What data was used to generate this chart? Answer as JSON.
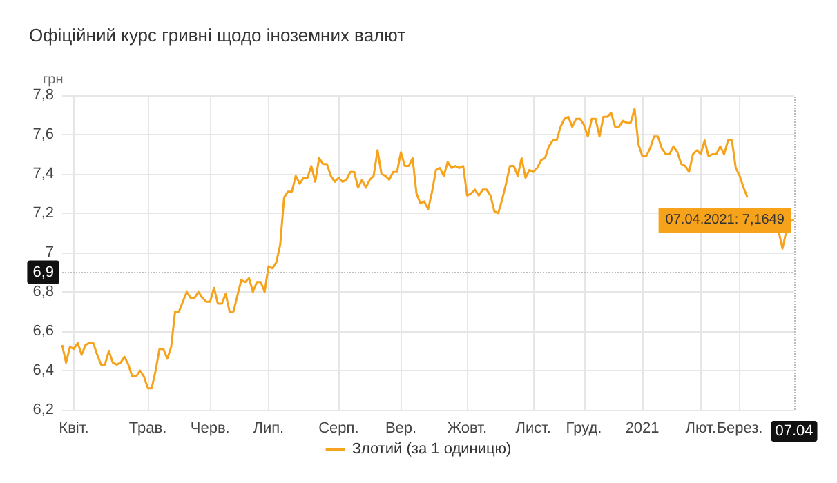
{
  "chart_data": {
    "type": "line",
    "title": "Офіційний курс гривні щодо іноземних валют",
    "ylabel": "грн",
    "categories": [
      null,
      null,
      null,
      "Квіт.",
      null,
      null,
      null,
      null,
      null,
      null,
      null,
      null,
      null,
      null,
      null,
      null,
      null,
      null,
      null,
      null,
      null,
      null,
      "Трав.",
      null,
      null,
      null,
      null,
      null,
      null,
      null,
      null,
      null,
      null,
      null,
      null,
      null,
      null,
      null,
      "Черв.",
      null,
      null,
      null,
      null,
      null,
      null,
      null,
      null,
      null,
      null,
      null,
      null,
      null,
      null,
      "Лип.",
      null,
      null,
      null,
      null,
      null,
      null,
      null,
      null,
      null,
      null,
      null,
      null,
      null,
      null,
      null,
      null,
      null,
      "Серп.",
      null,
      null,
      null,
      null,
      null,
      null,
      null,
      null,
      null,
      null,
      null,
      null,
      null,
      null,
      null,
      "Вер.",
      null,
      null,
      null,
      null,
      null,
      null,
      null,
      null,
      null,
      null,
      null,
      null,
      null,
      null,
      null,
      null,
      "Жовт.",
      null,
      null,
      null,
      null,
      null,
      null,
      null,
      null,
      null,
      null,
      null,
      null,
      null,
      null,
      null,
      null,
      "Лист.",
      null,
      null,
      null,
      null,
      null,
      null,
      null,
      null,
      null,
      null,
      null,
      null,
      "Груд.",
      null,
      null,
      null,
      null,
      null,
      null,
      null,
      null,
      null,
      null,
      null,
      null,
      null,
      null,
      "2021",
      null,
      null,
      null,
      null,
      null,
      null,
      null,
      null,
      null,
      null,
      null,
      null,
      null,
      null,
      "Лют.",
      null,
      null,
      null,
      null,
      null,
      null,
      null,
      null,
      null,
      "Берез.",
      null,
      null,
      null,
      null,
      null,
      null,
      null,
      null,
      null,
      null,
      null,
      null,
      null,
      "07.04"
    ],
    "series": [
      {
        "name": "Злотий (за 1 одиницю)",
        "color": "#f7a21b",
        "values": [
          6.53,
          6.44,
          6.52,
          6.51,
          6.54,
          6.48,
          6.53,
          6.54,
          6.54,
          6.48,
          6.43,
          6.43,
          6.5,
          6.44,
          6.43,
          6.44,
          6.47,
          6.43,
          6.37,
          6.37,
          6.4,
          6.37,
          6.31,
          6.31,
          6.4,
          6.51,
          6.51,
          6.46,
          6.52,
          6.7,
          6.7,
          6.75,
          6.8,
          6.77,
          6.77,
          6.8,
          6.77,
          6.75,
          6.75,
          6.82,
          6.74,
          6.74,
          6.79,
          6.7,
          6.7,
          6.78,
          6.86,
          6.85,
          6.87,
          6.8,
          6.85,
          6.85,
          6.8,
          6.93,
          6.92,
          6.95,
          7.04,
          7.28,
          7.31,
          7.31,
          7.39,
          7.35,
          7.38,
          7.38,
          7.44,
          7.36,
          7.48,
          7.45,
          7.45,
          7.39,
          7.36,
          7.38,
          7.36,
          7.37,
          7.41,
          7.41,
          7.33,
          7.37,
          7.33,
          7.37,
          7.39,
          7.52,
          7.4,
          7.39,
          7.37,
          7.41,
          7.41,
          7.51,
          7.44,
          7.44,
          7.48,
          7.3,
          7.25,
          7.26,
          7.22,
          7.31,
          7.42,
          7.43,
          7.39,
          7.46,
          7.43,
          7.44,
          7.43,
          7.44,
          7.29,
          7.3,
          7.32,
          7.29,
          7.32,
          7.32,
          7.29,
          7.21,
          7.2,
          7.27,
          7.35,
          7.44,
          7.44,
          7.39,
          7.48,
          7.38,
          7.42,
          7.41,
          7.43,
          7.47,
          7.48,
          7.54,
          7.57,
          7.57,
          7.64,
          7.68,
          7.69,
          7.64,
          7.68,
          7.68,
          7.65,
          7.59,
          7.68,
          7.68,
          7.59,
          7.69,
          7.69,
          7.71,
          7.64,
          7.64,
          7.67,
          7.66,
          7.66,
          7.73,
          7.55,
          7.49,
          7.49,
          7.53,
          7.59,
          7.59,
          7.53,
          7.5,
          7.5,
          7.54,
          7.51,
          7.45,
          7.44,
          7.41,
          7.5,
          7.52,
          7.5,
          7.57,
          7.49,
          7.5,
          7.5,
          7.54,
          7.5,
          7.57,
          7.57,
          7.43,
          7.39,
          7.33,
          7.28,
          null,
          null,
          null,
          null,
          null,
          null,
          null,
          7.11,
          7.02,
          7.11,
          7.16,
          7.1649
        ]
      }
    ],
    "ylim": [
      6.2,
      7.8
    ],
    "yticks": [
      {
        "value": 6.2,
        "label": "6,2"
      },
      {
        "value": 6.4,
        "label": "6,4"
      },
      {
        "value": 6.6,
        "label": "6,6"
      },
      {
        "value": 6.8,
        "label": "6,8"
      },
      7,
      {
        "value": 7.2,
        "label": "7,2"
      },
      {
        "value": 7.4,
        "label": "7,4"
      },
      {
        "value": 7.6,
        "label": "7,6"
      },
      {
        "value": 7.8,
        "label": "7,8"
      }
    ],
    "ref_lines": [
      {
        "axis": "y",
        "value": 6.9,
        "label": "6,9",
        "color": "#bbbbbb",
        "line_style": "dotted"
      },
      {
        "axis": "x",
        "value": "07.04",
        "color": "#bbbbbb",
        "line_style": "dotted"
      }
    ],
    "annotations": [
      {
        "text": "07.04.2021: 7,1649",
        "x": "07.04",
        "y": 7.1649
      }
    ],
    "grid": true,
    "legend": "bottom",
    "marker": "none",
    "line_style": "solid"
  }
}
